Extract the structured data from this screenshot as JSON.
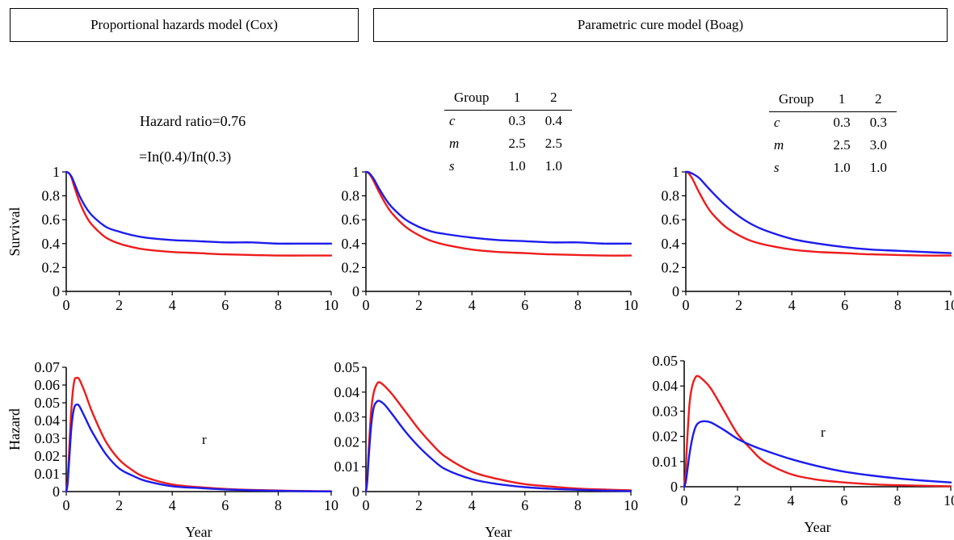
{
  "headers": {
    "left": "Proportional hazards model (Cox)",
    "right": "Parametric cure model (Boag)"
  },
  "annotations": {
    "hazard_ratio": "Hazard ratio=0.76",
    "ratio_formula": "=In(0.4)/In(0.3)",
    "marker_left": "r",
    "marker_right": "r"
  },
  "tables": [
    {
      "header": [
        "Group",
        "1",
        "2"
      ],
      "rows": [
        [
          "c",
          "0.3",
          "0.4"
        ],
        [
          "m",
          "2.5",
          "2.5"
        ],
        [
          "s",
          "1.0",
          "1.0"
        ]
      ]
    },
    {
      "header": [
        "Group",
        "1",
        "2"
      ],
      "rows": [
        [
          "c",
          "0.3",
          "0.3"
        ],
        [
          "m",
          "2.5",
          "3.0"
        ],
        [
          "s",
          "1.0",
          "1.0"
        ]
      ]
    }
  ],
  "colors": {
    "group1": "#ee1c1c",
    "group2": "#1c1cee"
  },
  "chart_data": [
    {
      "type": "line",
      "panel": "cox-survival",
      "ylabel": "Survival",
      "xlabel": "",
      "xlim": [
        0,
        10
      ],
      "ylim": [
        0,
        1
      ],
      "xticks": [
        "0",
        "2",
        "4",
        "6",
        "8",
        "10"
      ],
      "yticks": [
        "0",
        "0.2",
        "0.4",
        "0.6",
        "0.8",
        "1"
      ],
      "x": [
        0,
        0.1,
        0.2,
        0.3,
        0.5,
        0.75,
        1,
        1.5,
        2,
        2.5,
        3,
        4,
        5,
        6,
        7,
        8,
        9,
        10
      ],
      "series": [
        {
          "color": "#ee1c1c",
          "values": [
            1,
            0.99,
            0.95,
            0.88,
            0.75,
            0.63,
            0.55,
            0.45,
            0.4,
            0.37,
            0.35,
            0.33,
            0.32,
            0.31,
            0.305,
            0.3,
            0.3,
            0.3
          ]
        },
        {
          "color": "#1c1cee",
          "values": [
            1,
            0.99,
            0.96,
            0.91,
            0.8,
            0.7,
            0.63,
            0.54,
            0.5,
            0.47,
            0.45,
            0.43,
            0.42,
            0.41,
            0.41,
            0.4,
            0.4,
            0.4
          ]
        }
      ]
    },
    {
      "type": "line",
      "panel": "boag1-survival",
      "ylabel": "",
      "xlabel": "",
      "xlim": [
        0,
        10
      ],
      "ylim": [
        0,
        1
      ],
      "xticks": [
        "0",
        "2",
        "4",
        "6",
        "8",
        "10"
      ],
      "yticks": [
        "0",
        "0.2",
        "0.4",
        "0.6",
        "0.8",
        "1"
      ],
      "x": [
        0,
        0.1,
        0.2,
        0.3,
        0.5,
        0.75,
        1,
        1.5,
        2,
        2.5,
        3,
        4,
        5,
        6,
        7,
        8,
        9,
        10
      ],
      "series": [
        {
          "color": "#ee1c1c",
          "values": [
            1,
            0.99,
            0.96,
            0.92,
            0.83,
            0.73,
            0.65,
            0.54,
            0.47,
            0.42,
            0.39,
            0.35,
            0.33,
            0.32,
            0.31,
            0.305,
            0.3,
            0.3
          ]
        },
        {
          "color": "#1c1cee",
          "values": [
            1,
            0.995,
            0.97,
            0.94,
            0.86,
            0.77,
            0.7,
            0.6,
            0.54,
            0.5,
            0.48,
            0.45,
            0.43,
            0.42,
            0.41,
            0.41,
            0.4,
            0.4
          ]
        }
      ]
    },
    {
      "type": "line",
      "panel": "boag2-survival",
      "ylabel": "",
      "xlabel": "",
      "xlim": [
        0,
        10
      ],
      "ylim": [
        0,
        1
      ],
      "xticks": [
        "0",
        "2",
        "4",
        "6",
        "8",
        "10"
      ],
      "yticks": [
        "0",
        "0.2",
        "0.4",
        "0.6",
        "0.8",
        "1"
      ],
      "x": [
        0,
        0.1,
        0.2,
        0.3,
        0.5,
        0.75,
        1,
        1.5,
        2,
        2.5,
        3,
        4,
        5,
        6,
        7,
        8,
        9,
        10
      ],
      "series": [
        {
          "color": "#ee1c1c",
          "values": [
            1,
            0.99,
            0.96,
            0.92,
            0.83,
            0.73,
            0.65,
            0.54,
            0.47,
            0.42,
            0.39,
            0.35,
            0.33,
            0.32,
            0.31,
            0.305,
            0.3,
            0.3
          ]
        },
        {
          "color": "#1c1cee",
          "values": [
            1,
            1,
            0.99,
            0.98,
            0.95,
            0.89,
            0.83,
            0.72,
            0.63,
            0.56,
            0.51,
            0.44,
            0.4,
            0.37,
            0.35,
            0.34,
            0.33,
            0.32
          ]
        }
      ]
    },
    {
      "type": "line",
      "panel": "cox-hazard",
      "ylabel": "Hazard",
      "xlabel": "Year",
      "xlim": [
        0,
        10
      ],
      "ylim": [
        0,
        0.07
      ],
      "xticks": [
        "0",
        "2",
        "4",
        "6",
        "8",
        "10"
      ],
      "yticks": [
        "0",
        "0.01",
        "0.02",
        "0.03",
        "0.04",
        "0.05",
        "0.06",
        "0.07"
      ],
      "x": [
        0,
        0.05,
        0.1,
        0.2,
        0.3,
        0.4,
        0.5,
        0.7,
        1,
        1.5,
        2,
        2.5,
        3,
        4,
        5,
        6,
        7,
        8,
        9,
        10
      ],
      "series": [
        {
          "color": "#ee1c1c",
          "values": [
            0,
            0.006,
            0.02,
            0.048,
            0.062,
            0.064,
            0.063,
            0.056,
            0.044,
            0.028,
            0.018,
            0.012,
            0.008,
            0.004,
            0.0025,
            0.0015,
            0.0009,
            0.0006,
            0.0003,
            0.0002
          ]
        },
        {
          "color": "#1c1cee",
          "values": [
            0,
            0.004,
            0.015,
            0.037,
            0.047,
            0.049,
            0.048,
            0.042,
            0.033,
            0.021,
            0.013,
            0.009,
            0.006,
            0.003,
            0.002,
            0.0012,
            0.0007,
            0.0004,
            0.0002,
            0.0001
          ]
        }
      ]
    },
    {
      "type": "line",
      "panel": "boag1-hazard",
      "ylabel": "",
      "xlabel": "Year",
      "xlim": [
        0,
        10
      ],
      "ylim": [
        0,
        0.05
      ],
      "xticks": [
        "0",
        "2",
        "4",
        "6",
        "8",
        "10"
      ],
      "yticks": [
        "0",
        "0.01",
        "0.02",
        "0.03",
        "0.04",
        "0.05"
      ],
      "x": [
        0,
        0.05,
        0.1,
        0.2,
        0.3,
        0.4,
        0.5,
        0.7,
        1,
        1.5,
        2,
        2.5,
        3,
        4,
        5,
        6,
        7,
        8,
        9,
        10
      ],
      "series": [
        {
          "color": "#ee1c1c",
          "values": [
            0,
            0.005,
            0.016,
            0.033,
            0.04,
            0.043,
            0.044,
            0.0425,
            0.039,
            0.032,
            0.025,
            0.019,
            0.014,
            0.008,
            0.005,
            0.003,
            0.002,
            0.0012,
            0.0008,
            0.0005
          ]
        },
        {
          "color": "#1c1cee",
          "values": [
            0,
            0.004,
            0.013,
            0.027,
            0.034,
            0.036,
            0.0365,
            0.035,
            0.031,
            0.024,
            0.018,
            0.013,
            0.009,
            0.005,
            0.003,
            0.0018,
            0.0011,
            0.0007,
            0.0004,
            0.0002
          ]
        }
      ]
    },
    {
      "type": "line",
      "panel": "boag2-hazard",
      "ylabel": "",
      "xlabel": "Year",
      "xlim": [
        0,
        10
      ],
      "ylim": [
        0,
        0.05
      ],
      "xticks": [
        "0",
        "2",
        "4",
        "6",
        "8",
        "10"
      ],
      "yticks": [
        "0",
        "0.01",
        "0.02",
        "0.03",
        "0.04",
        "0.05"
      ],
      "x": [
        0,
        0.05,
        0.1,
        0.2,
        0.3,
        0.4,
        0.5,
        0.7,
        1,
        1.5,
        2,
        2.5,
        3,
        4,
        5,
        6,
        7,
        8,
        9,
        10
      ],
      "series": [
        {
          "color": "#ee1c1c",
          "values": [
            0,
            0.005,
            0.016,
            0.033,
            0.04,
            0.043,
            0.044,
            0.0425,
            0.039,
            0.03,
            0.021,
            0.015,
            0.01,
            0.005,
            0.0028,
            0.0017,
            0.001,
            0.0006,
            0.0004,
            0.0002
          ]
        },
        {
          "color": "#1c1cee",
          "values": [
            0,
            0.0015,
            0.005,
            0.013,
            0.019,
            0.023,
            0.025,
            0.026,
            0.0255,
            0.0225,
            0.019,
            0.0165,
            0.0145,
            0.011,
            0.0082,
            0.006,
            0.0045,
            0.0033,
            0.0024,
            0.0017
          ]
        }
      ]
    }
  ]
}
